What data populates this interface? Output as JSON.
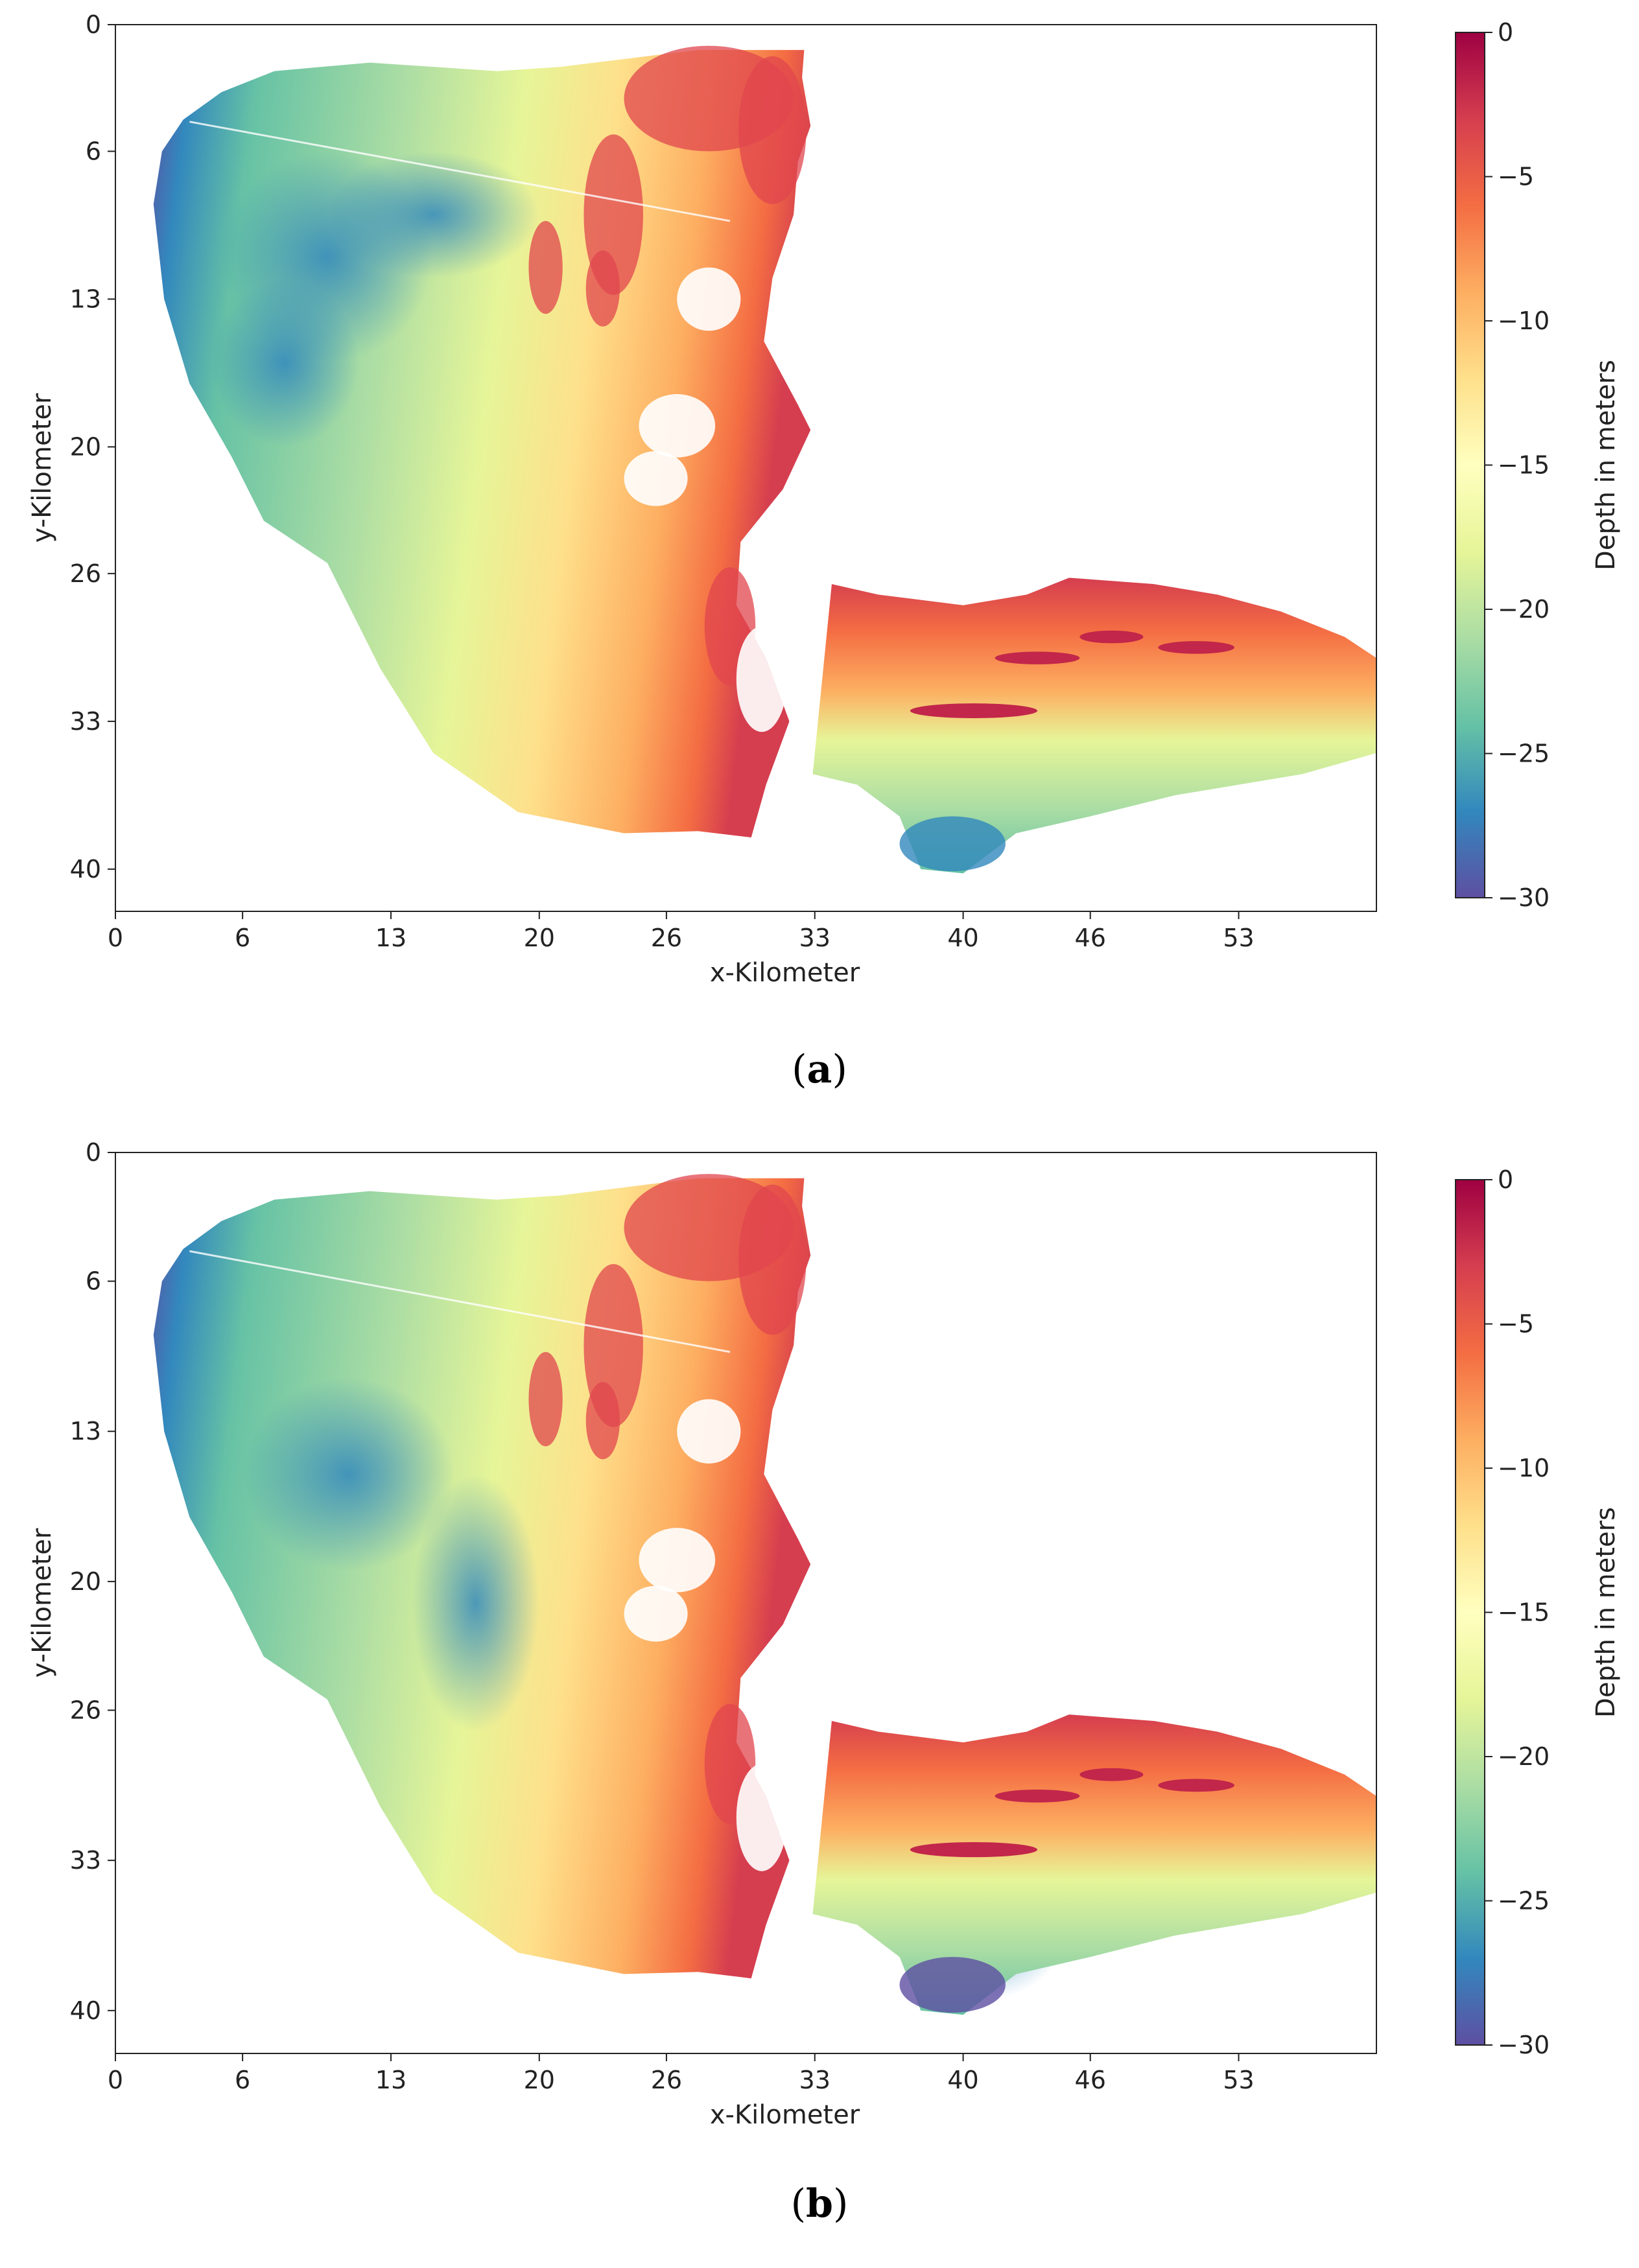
{
  "panels": [
    {
      "caption_letter": "a",
      "chart_data": {
        "type": "heatmap",
        "xlabel": "x-Kilometer",
        "ylabel": "y-Kilometer",
        "xticks": [
          0,
          6,
          13,
          20,
          26,
          33,
          40,
          46,
          53
        ],
        "yticks": [
          0,
          6,
          13,
          20,
          26,
          33,
          40
        ],
        "xlim": [
          0,
          59.5
        ],
        "ylim": [
          42,
          0
        ],
        "colorbar": {
          "label": "Depth in meters",
          "ticks": [
            0,
            -5,
            -10,
            -15,
            -20,
            -25,
            -30
          ],
          "range": [
            -30,
            0
          ],
          "colormap": "Spectral"
        },
        "grid": false
      }
    },
    {
      "caption_letter": "b",
      "chart_data": {
        "type": "heatmap",
        "xlabel": "x-Kilometer",
        "ylabel": "y-Kilometer",
        "xticks": [
          0,
          6,
          13,
          20,
          26,
          33,
          40,
          46,
          53
        ],
        "yticks": [
          0,
          6,
          13,
          20,
          26,
          33,
          40
        ],
        "xlim": [
          0,
          59.5
        ],
        "ylim": [
          42,
          0
        ],
        "colorbar": {
          "label": "Depth in meters",
          "ticks": [
            0,
            -5,
            -10,
            -15,
            -20,
            -25,
            -30
          ],
          "range": [
            -30,
            0
          ],
          "colormap": "Spectral"
        },
        "grid": false
      }
    }
  ],
  "colors": {
    "cmap_stops": [
      "#9e0142",
      "#d53e4f",
      "#f46d43",
      "#fdae61",
      "#fee08b",
      "#ffffbf",
      "#e6f598",
      "#abdda4",
      "#66c2a5",
      "#3288bd",
      "#5e4fa2"
    ]
  }
}
